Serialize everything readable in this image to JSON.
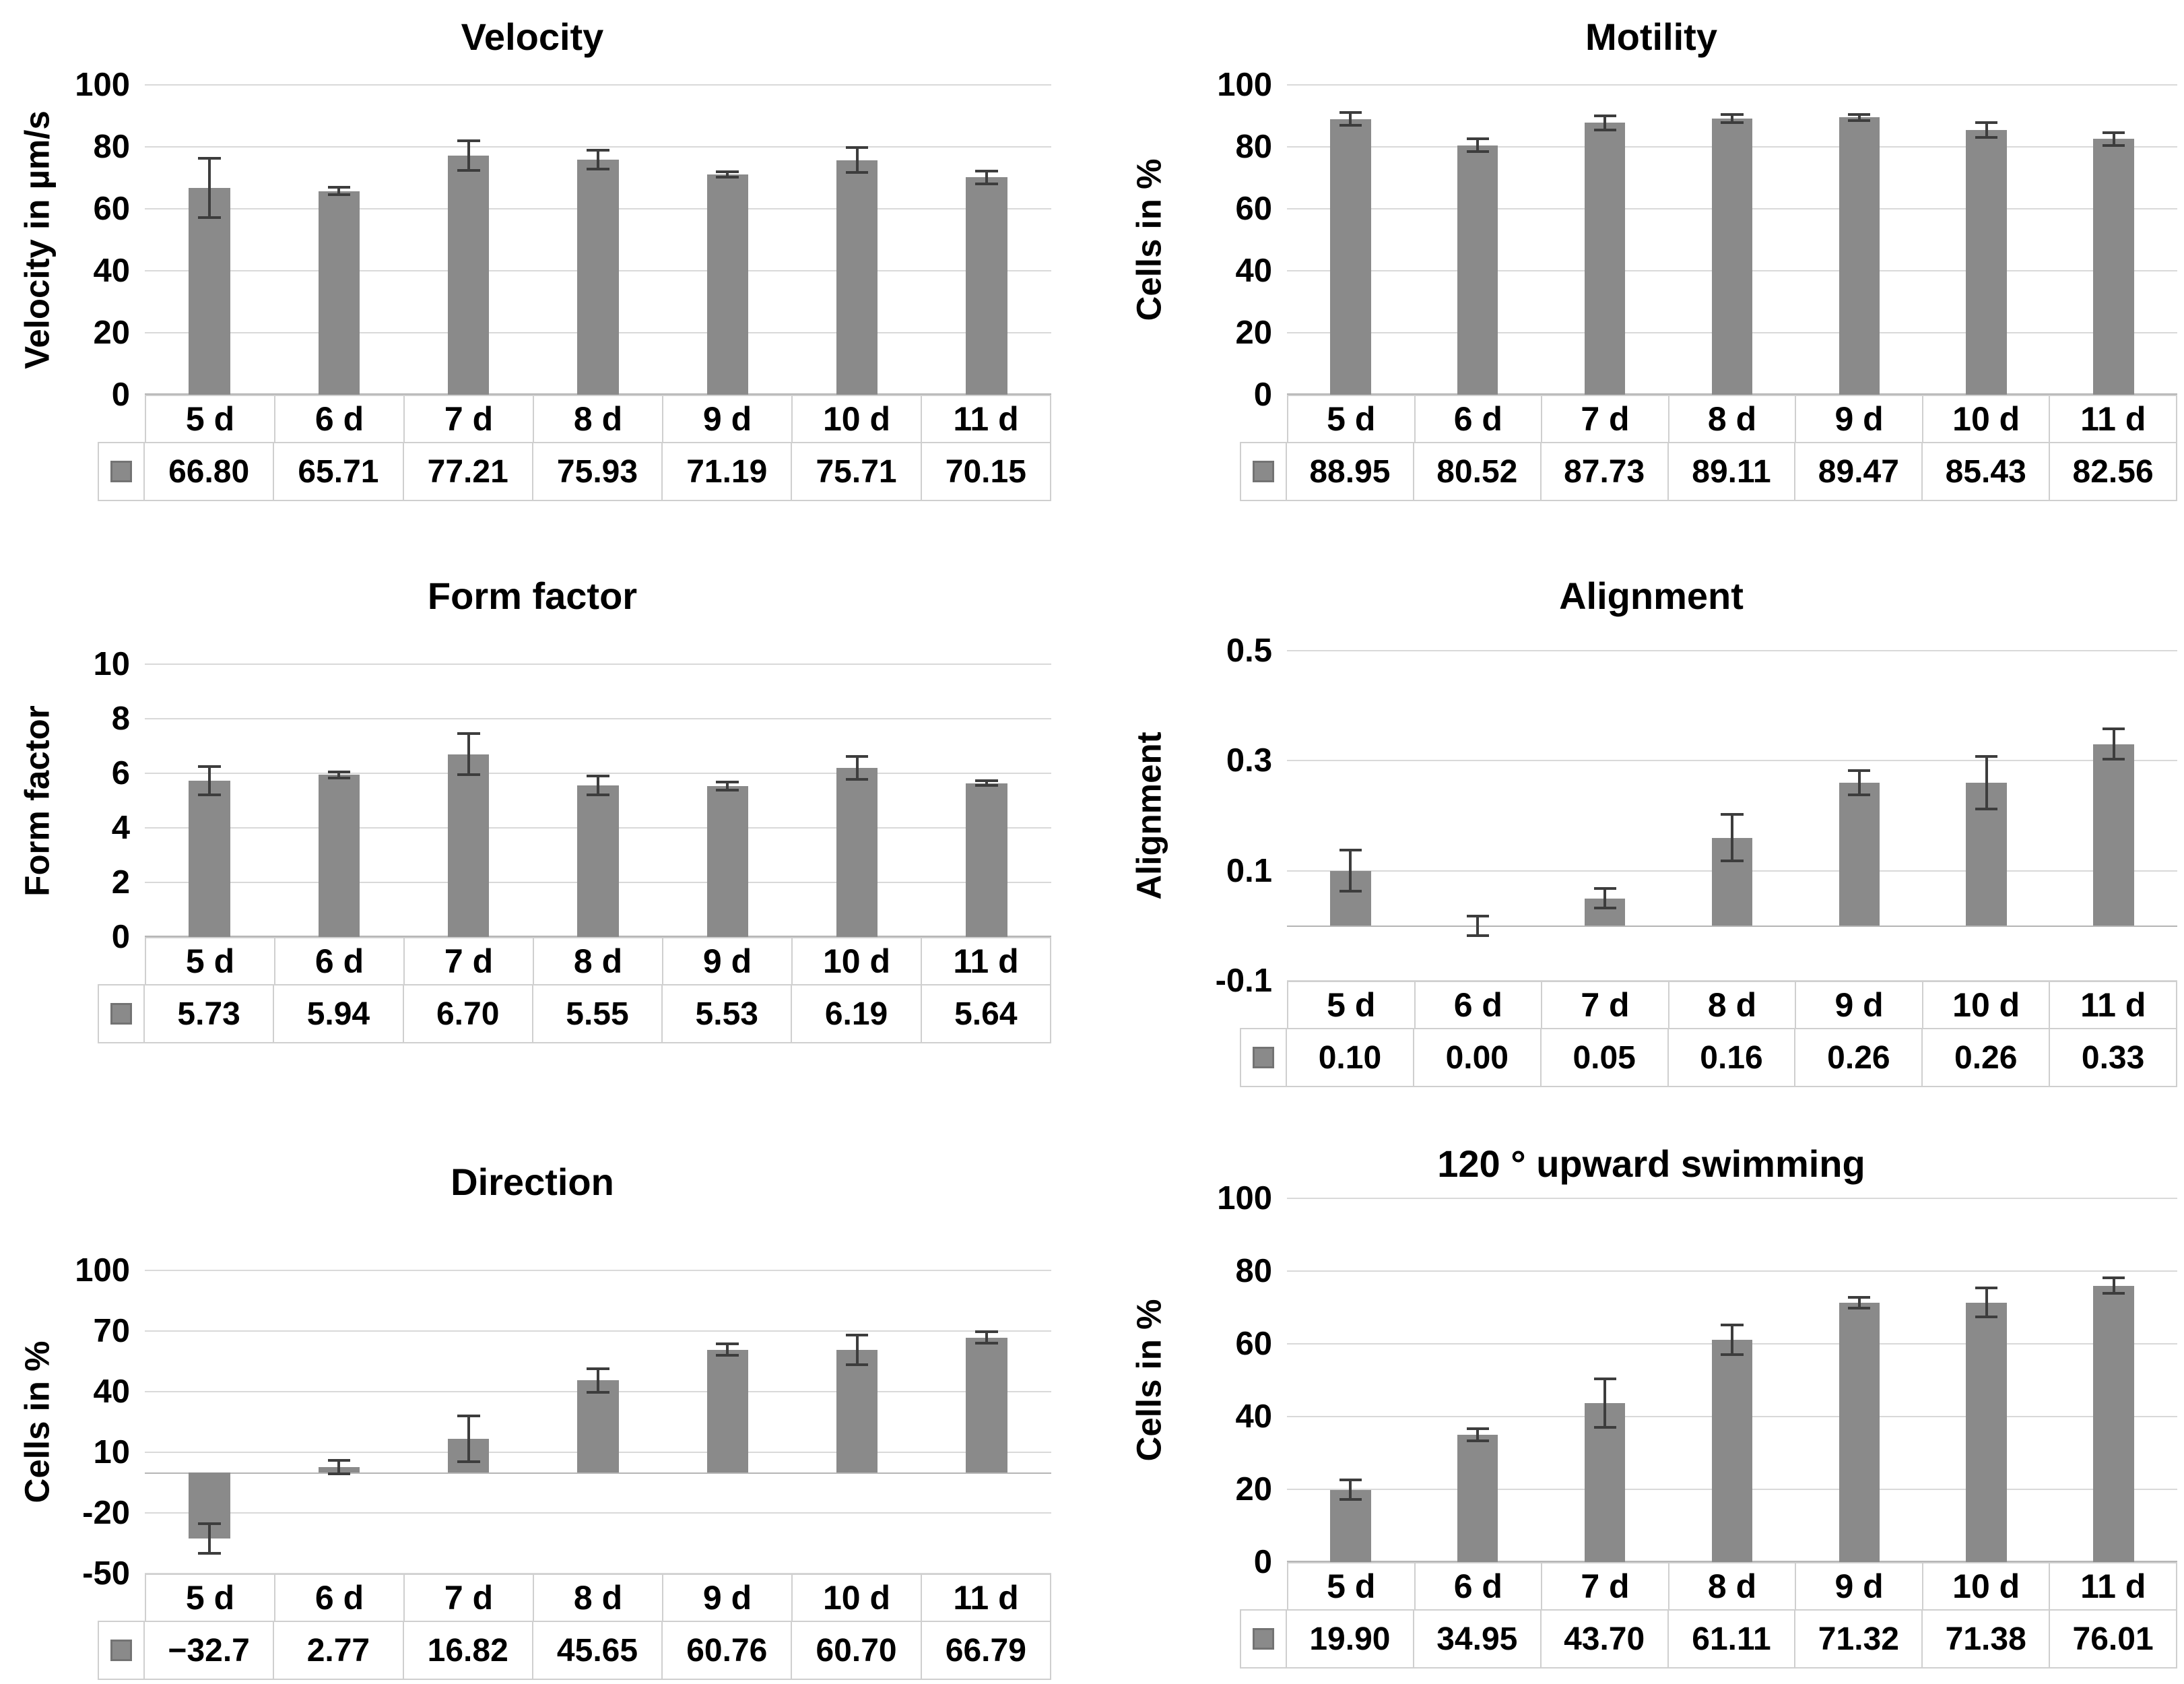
{
  "figure": {
    "background": "#ffffff",
    "layout": "2x3 grid of bar charts with data tables"
  },
  "colors": {
    "bar": "#8a8a8a",
    "error_bar": "#3d3d3d",
    "gridline": "#d9d9d9",
    "axis_line": "#b5b5b5",
    "table_border": "#cfcfcf",
    "text": "#000000"
  },
  "chart_data": [
    {
      "type": "bar",
      "title": "Velocity",
      "ylabel": "Velocity in µm/s",
      "categories": [
        "5 d",
        "6 d",
        "7 d",
        "8 d",
        "9 d",
        "10 d",
        "11 d"
      ],
      "values": [
        66.8,
        65.71,
        77.21,
        75.93,
        71.19,
        75.71,
        70.15
      ],
      "value_labels": [
        "66.80",
        "65.71",
        "77.21",
        "75.93",
        "71.19",
        "75.71",
        "70.15"
      ],
      "errors": [
        10,
        1.6,
        5.2,
        3.5,
        1.3,
        4.5,
        2.5
      ],
      "ylim": [
        0,
        100
      ],
      "yticks": [
        0,
        20,
        40,
        60,
        80,
        100
      ],
      "ytick_labels": [
        "0",
        "20",
        "40",
        "60",
        "80",
        "100"
      ],
      "grid": true,
      "legend_position": "table-left",
      "legend_marker": "gray-square"
    },
    {
      "type": "bar",
      "title": "Motility",
      "ylabel": "Cells in %",
      "categories": [
        "5 d",
        "6 d",
        "7 d",
        "8 d",
        "9 d",
        "10 d",
        "11 d"
      ],
      "values": [
        88.95,
        80.52,
        87.73,
        89.11,
        89.47,
        85.43,
        82.56
      ],
      "value_labels": [
        "88.95",
        "80.52",
        "87.73",
        "89.11",
        "89.47",
        "85.43",
        "82.56"
      ],
      "errors": [
        2.5,
        2.5,
        2.7,
        1.8,
        1.5,
        2.9,
        2.5
      ],
      "ylim": [
        0,
        100
      ],
      "yticks": [
        0,
        20,
        40,
        60,
        80,
        100
      ],
      "ytick_labels": [
        "0",
        "20",
        "40",
        "60",
        "80",
        "100"
      ],
      "grid": true,
      "legend_position": "table-left",
      "legend_marker": "gray-square"
    },
    {
      "type": "bar",
      "title": "Form factor",
      "ylabel": "Form factor",
      "categories": [
        "5 d",
        "6 d",
        "7 d",
        "8 d",
        "9 d",
        "10 d",
        "11 d"
      ],
      "values": [
        5.73,
        5.94,
        6.7,
        5.55,
        5.53,
        6.19,
        5.64
      ],
      "value_labels": [
        "5.73",
        "5.94",
        "6.70",
        "5.55",
        "5.53",
        "6.19",
        "5.64"
      ],
      "errors": [
        0.57,
        0.15,
        0.8,
        0.4,
        0.2,
        0.47,
        0.14
      ],
      "ylim": [
        0,
        10
      ],
      "yticks": [
        0,
        2,
        4,
        6,
        8,
        10
      ],
      "ytick_labels": [
        "0",
        "2",
        "4",
        "6",
        "8",
        "10"
      ],
      "grid": true,
      "legend_position": "table-left",
      "legend_marker": "gray-square"
    },
    {
      "type": "bar",
      "title": "Alignment",
      "ylabel": "Alignment",
      "categories": [
        "5 d",
        "6 d",
        "7 d",
        "8 d",
        "9 d",
        "10 d",
        "11 d"
      ],
      "values": [
        0.1,
        0.0,
        0.05,
        0.16,
        0.26,
        0.26,
        0.33
      ],
      "value_labels": [
        "0.10",
        "0.00",
        "0.05",
        "0.16",
        "0.26",
        "0.26",
        "0.33"
      ],
      "errors": [
        0.04,
        0.02,
        0.02,
        0.045,
        0.025,
        0.05,
        0.03
      ],
      "ylim": [
        -0.1,
        0.5
      ],
      "yticks": [
        -0.1,
        0.1,
        0.3,
        0.5
      ],
      "ytick_labels": [
        "-0.1",
        "0.1",
        "0.3",
        "0.5"
      ],
      "grid": true,
      "legend_position": "table-left",
      "legend_marker": "gray-square"
    },
    {
      "type": "bar",
      "title": "Direction",
      "ylabel": "Cells in %",
      "categories": [
        "5 d",
        "6 d",
        "7 d",
        "8 d",
        "9 d",
        "10 d",
        "11 d"
      ],
      "values": [
        -32.7,
        2.77,
        16.82,
        45.65,
        60.76,
        60.7,
        66.79
      ],
      "value_labels": [
        "−32.7",
        "2.77",
        "16.82",
        "45.65",
        "60.76",
        "60.70",
        "66.79"
      ],
      "errors": [
        8,
        4,
        12,
        6.5,
        3.5,
        8,
        3.5
      ],
      "ylim": [
        -50,
        100
      ],
      "yticks": [
        -50,
        -20,
        10,
        40,
        70,
        100
      ],
      "ytick_labels": [
        "-50",
        "-20",
        "10",
        "40",
        "70",
        "100"
      ],
      "grid": true,
      "legend_position": "table-left",
      "legend_marker": "gray-square"
    },
    {
      "type": "bar",
      "title": "120 ° upward swimming",
      "ylabel": "Cells in %",
      "categories": [
        "5 d",
        "6 d",
        "7 d",
        "8 d",
        "9 d",
        "10 d",
        "11 d"
      ],
      "values": [
        19.9,
        34.95,
        43.7,
        61.11,
        71.32,
        71.38,
        76.01
      ],
      "value_labels": [
        "19.90",
        "34.95",
        "43.70",
        "61.11",
        "71.32",
        "71.38",
        "76.01"
      ],
      "errors": [
        3,
        2,
        7,
        4.5,
        1.8,
        4.3,
        2.5
      ],
      "ylim": [
        0,
        100
      ],
      "yticks": [
        0,
        20,
        40,
        60,
        80,
        100
      ],
      "ytick_labels": [
        "0",
        "20",
        "40",
        "60",
        "80",
        "100"
      ],
      "grid": true,
      "legend_position": "table-left",
      "legend_marker": "gray-square"
    }
  ]
}
